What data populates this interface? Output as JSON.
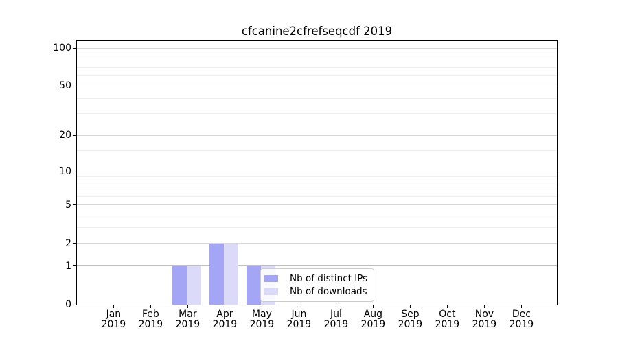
{
  "chart_data": {
    "type": "bar",
    "title": "cfcanine2cfrefseqcdf 2019",
    "categories": [
      "Jan",
      "Feb",
      "Mar",
      "Apr",
      "May",
      "Jun",
      "Jul",
      "Aug",
      "Sep",
      "Oct",
      "Nov",
      "Dec"
    ],
    "category_year": "2019",
    "series": [
      {
        "name": "Nb of distinct IPs",
        "color": "#a5a5f5",
        "values": [
          0,
          0,
          1,
          2,
          1,
          0,
          0,
          0,
          0,
          0,
          0,
          0
        ]
      },
      {
        "name": "Nb of downloads",
        "color": "#dbdbf9",
        "values": [
          0,
          0,
          1,
          2,
          1,
          0,
          0,
          0,
          0,
          0,
          0,
          0
        ]
      }
    ],
    "xlabel": "",
    "ylabel": "",
    "yscale": "log1p",
    "ylim": [
      0,
      113
    ],
    "y_major_ticks": [
      0,
      1,
      2,
      5,
      10,
      20,
      50,
      100
    ],
    "y_minor_ticks": [
      3,
      4,
      6,
      7,
      8,
      9,
      15,
      30,
      40,
      60,
      70,
      80,
      90
    ],
    "grid": "horizontal",
    "legend_position": "inside lower center-right",
    "style": {
      "background": "#ffffff",
      "axis_color": "#000000",
      "grid_major_color": "#d8d8d8",
      "grid_minor_color": "#eeeeee",
      "grid_baseline_color": "#bfbfbf",
      "tick_label_color": "#000000"
    }
  }
}
